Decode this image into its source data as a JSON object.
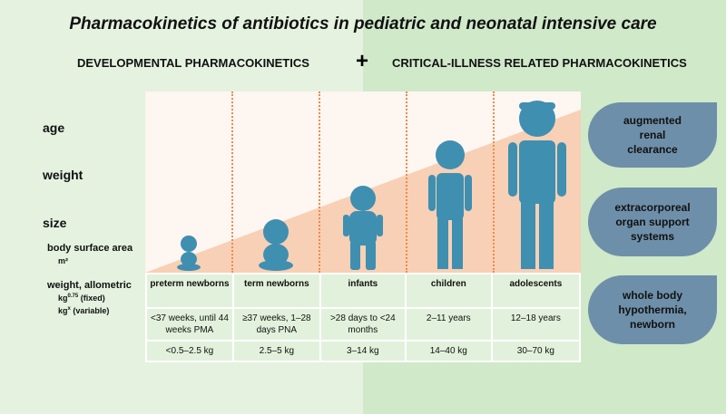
{
  "title": "Pharmacokinetics of antibiotics in pediatric and neonatal intensive care",
  "left_heading": "DEVELOPMENTAL PHARMACOKINETICS",
  "plus": "+",
  "right_heading": "CRITICAL-ILLNESS RELATED PHARMACOKINETICS",
  "row_labels": {
    "age": "age",
    "weight": "weight",
    "size": "size",
    "bsa": "body surface area",
    "bsa_unit": "m²",
    "allometric": "weight, allometric",
    "fixed": "kg0.75 (fixed)",
    "variable": "kgx (variable)"
  },
  "groups": [
    {
      "name": "preterm newborns",
      "age": "<37 weeks, until 44 weeks PMA",
      "weight": "<0.5–2.5 kg"
    },
    {
      "name": "term newborns",
      "age": "≥37 weeks, 1–28 days PNA",
      "weight": "2.5–5 kg"
    },
    {
      "name": "infants",
      "age": ">28 days to <24 months",
      "weight": "3–14 kg"
    },
    {
      "name": "children",
      "age": "2–11 years",
      "weight": "14–40 kg"
    },
    {
      "name": "adolescents",
      "age": "12–18 years",
      "weight": "30–70 kg"
    }
  ],
  "factors": [
    "augmented renal clearance",
    "extracorporeal organ support systems",
    "whole body hypothermia, newborn"
  ],
  "colors": {
    "figure": "#3f8fb1",
    "pill": "#6e8fa9",
    "wedge": "#f6c3a0",
    "divider": "#f08a4b"
  }
}
